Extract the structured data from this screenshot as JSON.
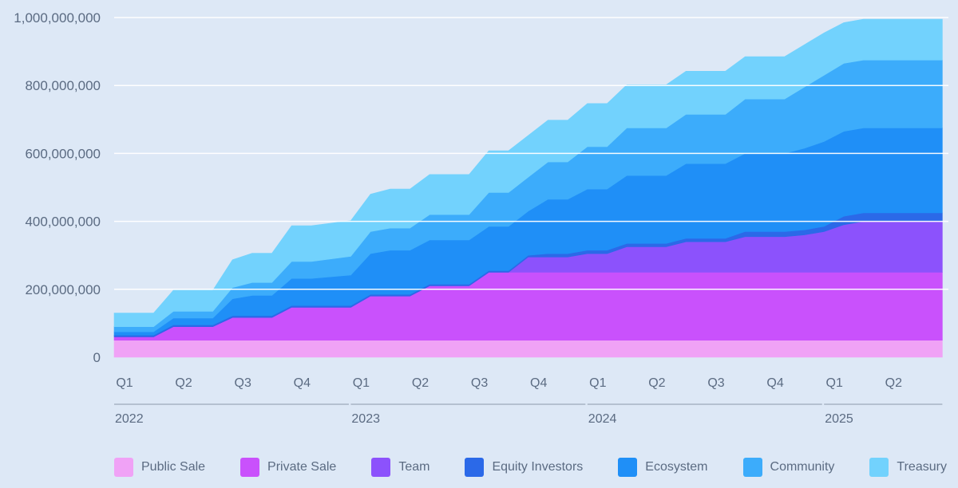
{
  "chart_data": {
    "type": "area",
    "stacked": true,
    "title": "",
    "xlabel": "",
    "ylabel": "",
    "ylim": [
      0,
      1000000000
    ],
    "yticks": [
      0,
      200000000,
      400000000,
      600000000,
      800000000,
      1000000000
    ],
    "ytick_labels": [
      "0",
      "200,000,000",
      "400,000,000",
      "600,000,000",
      "800,000,000",
      "1,000,000,000"
    ],
    "x_unit": "month",
    "x_range": [
      0,
      42
    ],
    "quarter_ticks": [
      {
        "label": "Q1",
        "m": 0
      },
      {
        "label": "Q2",
        "m": 3
      },
      {
        "label": "Q3",
        "m": 6
      },
      {
        "label": "Q4",
        "m": 9
      },
      {
        "label": "Q1",
        "m": 12
      },
      {
        "label": "Q2",
        "m": 15
      },
      {
        "label": "Q3",
        "m": 18
      },
      {
        "label": "Q4",
        "m": 21
      },
      {
        "label": "Q1",
        "m": 24
      },
      {
        "label": "Q2",
        "m": 27
      },
      {
        "label": "Q3",
        "m": 30
      },
      {
        "label": "Q4",
        "m": 33
      },
      {
        "label": "Q1",
        "m": 36
      },
      {
        "label": "Q2",
        "m": 39
      }
    ],
    "years": [
      {
        "label": "2022",
        "m": 0,
        "end": 11.9
      },
      {
        "label": "2023",
        "m": 12,
        "end": 23.9
      },
      {
        "label": "2024",
        "m": 24,
        "end": 35.9
      },
      {
        "label": "2025",
        "m": 36,
        "end": 42
      }
    ],
    "x": [
      0,
      2,
      3,
      5,
      6,
      7,
      8,
      9,
      10,
      12,
      13,
      14,
      15,
      16,
      17,
      18,
      19,
      20,
      21,
      22,
      23,
      24,
      25,
      26,
      27,
      28,
      29,
      30,
      31,
      32,
      33,
      34,
      35,
      36,
      37,
      38,
      39,
      40,
      41,
      42
    ],
    "series": [
      {
        "name": "Public Sale",
        "color": "#f0a2f6",
        "values": [
          50,
          50,
          50,
          50,
          50,
          50,
          50,
          50,
          50,
          50,
          50,
          50,
          50,
          50,
          50,
          50,
          50,
          50,
          50,
          50,
          50,
          50,
          50,
          50,
          50,
          50,
          50,
          50,
          50,
          50,
          50,
          50,
          50,
          50,
          50,
          50,
          50,
          50,
          50,
          50
        ]
      },
      {
        "name": "Private Sale",
        "color": "#c951fc",
        "values": [
          10,
          10,
          40,
          40,
          67,
          67,
          67,
          97,
          97,
          97,
          130,
          130,
          130,
          160,
          160,
          160,
          200,
          200,
          200,
          200,
          200,
          200,
          200,
          200,
          200,
          200,
          200,
          200,
          200,
          200,
          200,
          200,
          200,
          200,
          200,
          200,
          200,
          200,
          200,
          200
        ]
      },
      {
        "name": "Team",
        "color": "#8c52fc",
        "values": [
          0,
          0,
          0,
          0,
          0,
          0,
          0,
          0,
          0,
          0,
          0,
          0,
          0,
          0,
          0,
          0,
          0,
          0,
          45,
          45,
          45,
          55,
          55,
          75,
          75,
          75,
          90,
          90,
          90,
          105,
          105,
          105,
          110,
          120,
          140,
          150,
          150,
          150,
          150,
          150
        ]
      },
      {
        "name": "Equity Investors",
        "color": "#2b69e8",
        "values": [
          5,
          5,
          5,
          5,
          5,
          5,
          5,
          5,
          5,
          5,
          5,
          5,
          5,
          5,
          5,
          5,
          5,
          5,
          5,
          10,
          10,
          10,
          10,
          10,
          10,
          10,
          10,
          10,
          10,
          15,
          15,
          15,
          15,
          15,
          25,
          25,
          25,
          25,
          25,
          25
        ]
      },
      {
        "name": "Ecosystem",
        "color": "#1f8ff7",
        "values": [
          10,
          10,
          20,
          20,
          50,
          60,
          60,
          80,
          80,
          90,
          120,
          130,
          130,
          130,
          130,
          130,
          130,
          130,
          130,
          160,
          160,
          180,
          180,
          200,
          200,
          200,
          220,
          220,
          220,
          230,
          230,
          230,
          240,
          250,
          250,
          250,
          250,
          250,
          250,
          250
        ]
      },
      {
        "name": "Community",
        "color": "#3cacfb",
        "values": [
          15,
          15,
          20,
          20,
          33,
          38,
          38,
          50,
          50,
          55,
          65,
          65,
          65,
          75,
          75,
          75,
          100,
          100,
          100,
          110,
          110,
          125,
          125,
          140,
          140,
          140,
          145,
          145,
          145,
          160,
          160,
          160,
          180,
          195,
          200,
          200,
          200,
          200,
          200,
          200
        ]
      },
      {
        "name": "Treasury",
        "color": "#72d2fd",
        "values": [
          40,
          40,
          62,
          62,
          82,
          86,
          86,
          105,
          105,
          105,
          110,
          115,
          115,
          118,
          118,
          118,
          123,
          123,
          123,
          123,
          123,
          127,
          127,
          127,
          127,
          127,
          127,
          127,
          127,
          125,
          125,
          125,
          125,
          125,
          120,
          120,
          120,
          120,
          120,
          120
        ]
      }
    ]
  },
  "legend": [
    {
      "label": "Public Sale",
      "color": "#f0a2f6"
    },
    {
      "label": "Private Sale",
      "color": "#c951fc"
    },
    {
      "label": "Team",
      "color": "#8c52fc"
    },
    {
      "label": "Equity Investors",
      "color": "#2b69e8"
    },
    {
      "label": "Ecosystem",
      "color": "#1f8ff7"
    },
    {
      "label": "Community",
      "color": "#3cacfb"
    },
    {
      "label": "Treasury",
      "color": "#72d2fd"
    }
  ],
  "style": {
    "background": "#dde8f6",
    "grid": "#ffffff",
    "text": "#5b6b82",
    "axis": "#8a97aa"
  }
}
